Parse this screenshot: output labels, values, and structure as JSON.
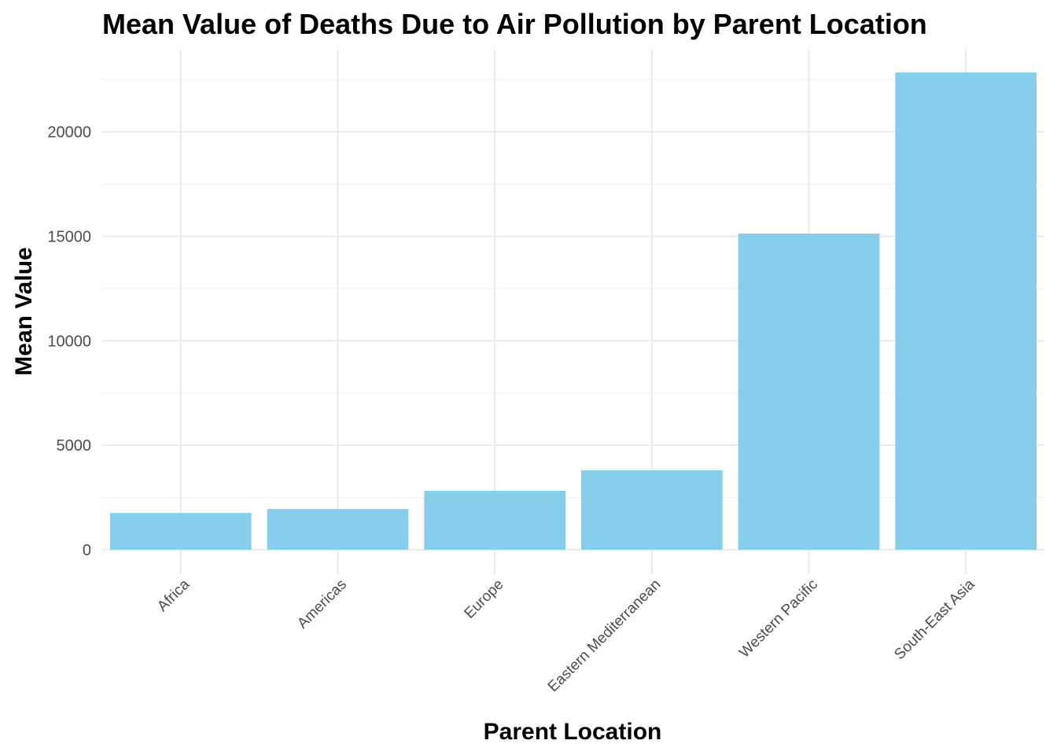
{
  "chart_data": {
    "type": "bar",
    "title": "Mean Value of Deaths Due to Air Pollution by Parent Location",
    "xlabel": "Parent Location",
    "ylabel": "Mean Value",
    "categories": [
      "Africa",
      "Americas",
      "Europe",
      "Eastern Mediterranean",
      "Western Pacific",
      "South-East Asia"
    ],
    "values": [
      1760,
      1950,
      2820,
      3800,
      15130,
      22840
    ],
    "ylim": [
      -1100,
      24000
    ],
    "yticks": [
      0,
      5000,
      10000,
      15000,
      20000
    ],
    "ytick_labels": [
      "0",
      "5000",
      "10000",
      "15000",
      "20000"
    ],
    "grid": true,
    "legend": "none",
    "bar_color": "#87CEEB"
  }
}
